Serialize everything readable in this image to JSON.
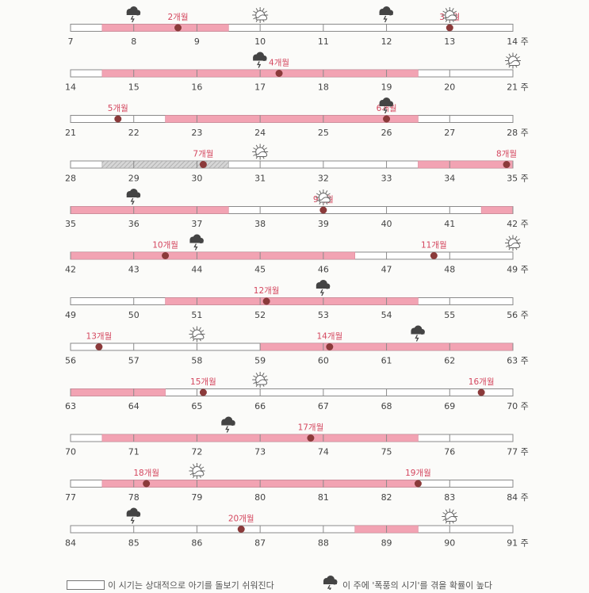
{
  "unit_label": "주",
  "month_suffix": "개월",
  "colors": {
    "pink": "#f2a3b3",
    "dot": "#8b3a3a",
    "label": "#d4475f",
    "line": "#888888",
    "hatch": "#bdbdbd"
  },
  "icons": {
    "storm": "storm-cloud-icon",
    "sun": "sun-icon"
  },
  "rows": [
    {
      "start": 7,
      "pink": [
        [
          7.5,
          9.5
        ]
      ],
      "months": [
        {
          "n": 2,
          "w": 8.7
        },
        {
          "n": 3,
          "w": 13.0
        }
      ],
      "storm": [
        8,
        12
      ],
      "sun": [
        10,
        13
      ]
    },
    {
      "start": 14,
      "pink": [
        [
          14.5,
          19.5
        ]
      ],
      "months": [
        {
          "n": 4,
          "w": 17.3
        }
      ],
      "storm": [
        17
      ],
      "sun": [
        21
      ]
    },
    {
      "start": 21,
      "pink": [
        [
          22.5,
          26.5
        ]
      ],
      "months": [
        {
          "n": 5,
          "w": 21.75
        },
        {
          "n": 6,
          "w": 26.0
        }
      ],
      "storm": [
        26
      ],
      "sun": []
    },
    {
      "start": 28,
      "pink": [
        [
          33.5,
          35.0
        ]
      ],
      "hatch": [
        [
          28.5,
          30.5
        ]
      ],
      "months": [
        {
          "n": 7,
          "w": 30.1
        },
        {
          "n": 8,
          "w": 34.9
        }
      ],
      "storm": [],
      "sun": [
        31
      ]
    },
    {
      "start": 35,
      "pink": [
        [
          35.0,
          37.5
        ],
        [
          41.5,
          42.0
        ]
      ],
      "months": [
        {
          "n": 9,
          "w": 39.0
        }
      ],
      "storm": [
        36
      ],
      "sun": [
        39
      ]
    },
    {
      "start": 42,
      "pink": [
        [
          42.0,
          46.5
        ]
      ],
      "months": [
        {
          "n": 10,
          "w": 43.5
        },
        {
          "n": 11,
          "w": 47.75
        }
      ],
      "storm": [
        44
      ],
      "sun": [
        49
      ]
    },
    {
      "start": 49,
      "pink": [
        [
          50.5,
          54.5
        ]
      ],
      "months": [
        {
          "n": 12,
          "w": 52.1
        }
      ],
      "storm": [
        53
      ],
      "sun": []
    },
    {
      "start": 56,
      "pink": [
        [
          59.0,
          63.0
        ]
      ],
      "months": [
        {
          "n": 13,
          "w": 56.45
        },
        {
          "n": 14,
          "w": 60.1
        }
      ],
      "storm": [
        61.5
      ],
      "sun": [
        58
      ]
    },
    {
      "start": 63,
      "pink": [
        [
          63.0,
          64.5
        ]
      ],
      "months": [
        {
          "n": 15,
          "w": 65.1
        },
        {
          "n": 16,
          "w": 69.5
        }
      ],
      "storm": [],
      "sun": [
        66
      ]
    },
    {
      "start": 70,
      "pink": [
        [
          70.5,
          75.5
        ]
      ],
      "months": [
        {
          "n": 17,
          "w": 73.8
        }
      ],
      "storm": [
        72.5
      ],
      "sun": []
    },
    {
      "start": 77,
      "pink": [
        [
          77.5,
          82.5
        ]
      ],
      "months": [
        {
          "n": 18,
          "w": 78.2
        },
        {
          "n": 19,
          "w": 82.5
        }
      ],
      "storm": [],
      "sun": [
        79
      ]
    },
    {
      "start": 84,
      "pink": [
        [
          88.5,
          89.5
        ]
      ],
      "months": [
        {
          "n": 20,
          "w": 86.7
        }
      ],
      "storm": [
        85
      ],
      "sun": [
        90
      ]
    }
  ],
  "legend": {
    "text1": "이 시기는 상대적으로 아기를 돌보기 쉬워진다",
    "text2": "이 주에 '폭풍의 시기'를 겪을 확률이 높다"
  }
}
